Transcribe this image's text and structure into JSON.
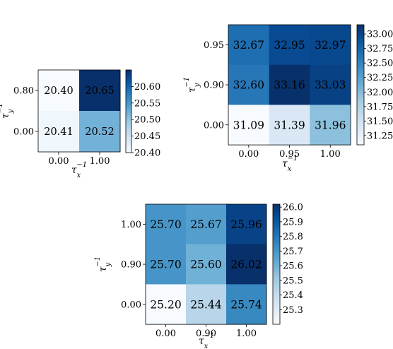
{
  "chart_data": [
    {
      "type": "heatmap",
      "x_categories": [
        "0.00",
        "1.00"
      ],
      "y_categories": [
        "0.80",
        "0.00"
      ],
      "values": [
        [
          20.4,
          20.65
        ],
        [
          20.41,
          20.52
        ]
      ],
      "cell_labels": [
        [
          "20.40",
          "20.65"
        ],
        [
          "20.41",
          "20.52"
        ]
      ],
      "vmin": 20.4,
      "vmax": 20.65,
      "colorbar_ticks": [
        "20.60",
        "20.55",
        "20.50",
        "20.45",
        "20.40"
      ],
      "colorbar_tick_values": [
        20.6,
        20.55,
        20.5,
        20.45,
        20.4
      ],
      "xlabel_base": "τ",
      "xlabel_sub": "x",
      "xlabel_sup": "−1",
      "ylabel_base": "τ",
      "ylabel_sub": "y",
      "ylabel_sup": "−1",
      "colormap": "Blues"
    },
    {
      "type": "heatmap",
      "x_categories": [
        "0.00",
        "0.95",
        "1.00"
      ],
      "y_categories": [
        "0.95",
        "0.90",
        "0.00"
      ],
      "values": [
        [
          32.67,
          32.95,
          32.97
        ],
        [
          32.6,
          33.16,
          33.03
        ],
        [
          31.09,
          31.39,
          31.96
        ]
      ],
      "cell_labels": [
        [
          "32.67",
          "32.95",
          "32.97"
        ],
        [
          "32.60",
          "33.16",
          "33.03"
        ],
        [
          "31.09",
          "31.39",
          "31.96"
        ]
      ],
      "vmin": 31.09,
      "vmax": 33.16,
      "colorbar_ticks": [
        "33.00",
        "32.75",
        "32.50",
        "32.25",
        "32.00",
        "31.75",
        "31.50",
        "31.25"
      ],
      "colorbar_tick_values": [
        33.0,
        32.75,
        32.5,
        32.25,
        32.0,
        31.75,
        31.5,
        31.25
      ],
      "xlabel_base": "τ",
      "xlabel_sub": "x",
      "xlabel_sup": "−1",
      "ylabel_base": "τ",
      "ylabel_sub": "y",
      "ylabel_sup": "−1",
      "colormap": "Blues"
    },
    {
      "type": "heatmap",
      "x_categories": [
        "0.00",
        "0.90",
        "1.00"
      ],
      "y_categories": [
        "1.00",
        "0.90",
        "0.00"
      ],
      "values": [
        [
          25.7,
          25.67,
          25.96
        ],
        [
          25.7,
          25.6,
          26.02
        ],
        [
          25.2,
          25.44,
          25.74
        ]
      ],
      "cell_labels": [
        [
          "25.70",
          "25.67",
          "25.96"
        ],
        [
          "25.70",
          "25.60",
          "26.02"
        ],
        [
          "25.20",
          "25.44",
          "25.74"
        ]
      ],
      "vmin": 25.2,
      "vmax": 26.02,
      "colorbar_ticks": [
        "26.0",
        "25.9",
        "25.8",
        "25.7",
        "25.6",
        "25.5",
        "25.4",
        "25.3"
      ],
      "colorbar_tick_values": [
        26.0,
        25.9,
        25.8,
        25.7,
        25.6,
        25.5,
        25.4,
        25.3
      ],
      "xlabel_base": "τ",
      "xlabel_sub": "x",
      "xlabel_sup": "−1",
      "ylabel_base": "τ",
      "ylabel_sub": "y",
      "ylabel_sup": "−1",
      "colormap": "Blues"
    }
  ]
}
